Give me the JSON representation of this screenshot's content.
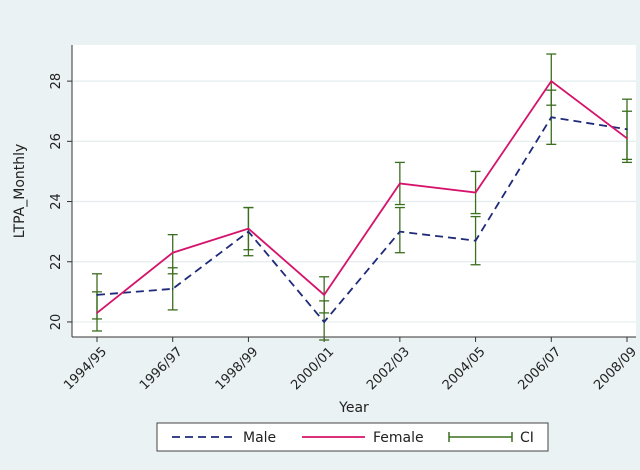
{
  "chart_data": {
    "type": "line",
    "xlabel": "Year",
    "ylabel": "LTPA_Monthly",
    "categories": [
      "1994/95",
      "1996/97",
      "1998/99",
      "2000/01",
      "2002/03",
      "2004/05",
      "2006/07",
      "2008/09"
    ],
    "ylim": [
      19.5,
      29.2
    ],
    "yticks": [
      20,
      22,
      24,
      26,
      28
    ],
    "grid": true,
    "legend_position": "bottom",
    "series": [
      {
        "name": "Male",
        "style": "dashed",
        "color": "#1f2a78",
        "values": [
          20.9,
          21.1,
          23.0,
          20.0,
          23.0,
          22.7,
          26.8,
          26.4
        ],
        "ci_low": [
          20.1,
          20.4,
          22.2,
          19.4,
          22.3,
          21.9,
          25.9,
          25.4
        ],
        "ci_high": [
          21.6,
          21.8,
          23.8,
          20.7,
          23.8,
          23.5,
          27.7,
          27.4
        ]
      },
      {
        "name": "Female",
        "style": "solid",
        "color": "#d6136a",
        "values": [
          20.3,
          22.3,
          23.1,
          20.9,
          24.6,
          24.3,
          28.0,
          26.1
        ],
        "ci_low": [
          19.7,
          21.6,
          22.4,
          20.3,
          23.9,
          23.6,
          27.2,
          25.3
        ],
        "ci_high": [
          21.0,
          22.9,
          23.8,
          21.5,
          25.3,
          25.0,
          28.9,
          27.0
        ]
      }
    ],
    "ci_label": "CI",
    "ci_color": "#3b6e1f"
  }
}
